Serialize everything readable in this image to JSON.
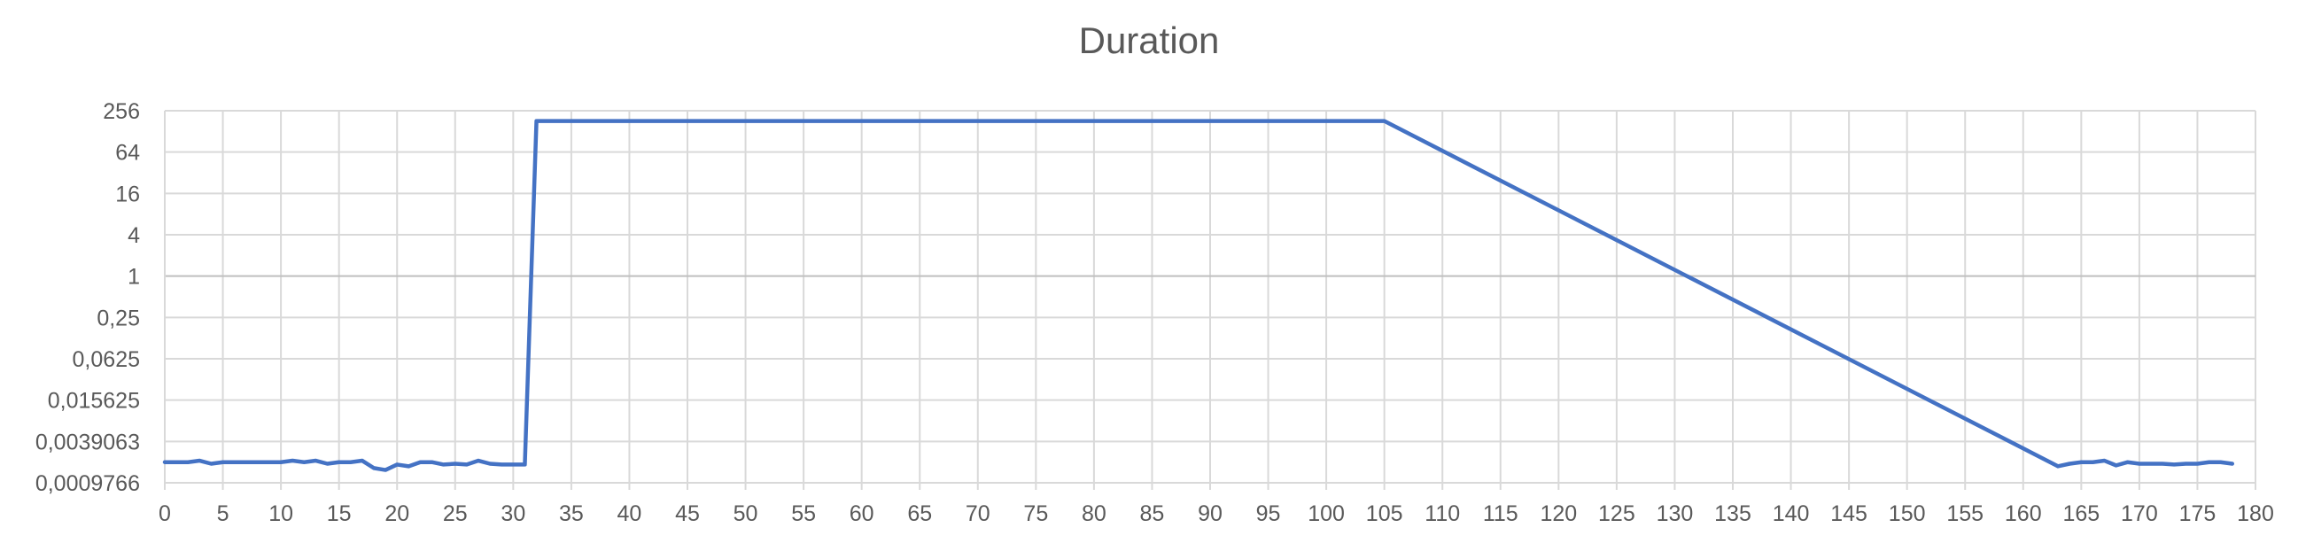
{
  "chart_data": {
    "type": "line",
    "title": "Duration",
    "xlabel": "",
    "ylabel": "",
    "x_scale": "linear",
    "y_scale": "log2",
    "xlim": [
      0,
      180
    ],
    "ylim": [
      0.0009766,
      256
    ],
    "grid": true,
    "legend": "none",
    "x_ticks": [
      "0",
      "5",
      "10",
      "15",
      "20",
      "25",
      "30",
      "35",
      "40",
      "45",
      "50",
      "55",
      "60",
      "65",
      "70",
      "75",
      "80",
      "85",
      "90",
      "95",
      "100",
      "105",
      "110",
      "115",
      "120",
      "125",
      "130",
      "135",
      "140",
      "145",
      "150",
      "155",
      "160",
      "165",
      "170",
      "175",
      "180"
    ],
    "y_ticks": [
      "256",
      "64",
      "16",
      "4",
      "1",
      "0,25",
      "0,0625",
      "0,015625",
      "0,0039063",
      "0,0009766"
    ],
    "series": [
      {
        "color": "#4472c4",
        "x": [
          0,
          1,
          2,
          3,
          4,
          5,
          6,
          7,
          8,
          9,
          10,
          11,
          12,
          13,
          14,
          15,
          16,
          17,
          18,
          19,
          20,
          21,
          22,
          23,
          24,
          25,
          26,
          27,
          28,
          29,
          30,
          31,
          32,
          105,
          163,
          164,
          165,
          166,
          167,
          168,
          169,
          170,
          171,
          172,
          173,
          174,
          175,
          176,
          177,
          178
        ],
        "y": [
          0.00195,
          0.00195,
          0.00195,
          0.00205,
          0.00185,
          0.00195,
          0.00195,
          0.00195,
          0.00195,
          0.00195,
          0.00195,
          0.00205,
          0.00195,
          0.00205,
          0.00185,
          0.00195,
          0.00195,
          0.00205,
          0.0016,
          0.0015,
          0.0018,
          0.0017,
          0.00195,
          0.00195,
          0.0018,
          0.00185,
          0.0018,
          0.00205,
          0.00185,
          0.0018,
          0.0018,
          0.0018,
          181,
          181,
          0.0017,
          0.00185,
          0.00195,
          0.00195,
          0.00205,
          0.00175,
          0.00195,
          0.00185,
          0.00185,
          0.00185,
          0.0018,
          0.00185,
          0.00185,
          0.00195,
          0.00195,
          0.00185
        ]
      }
    ]
  }
}
